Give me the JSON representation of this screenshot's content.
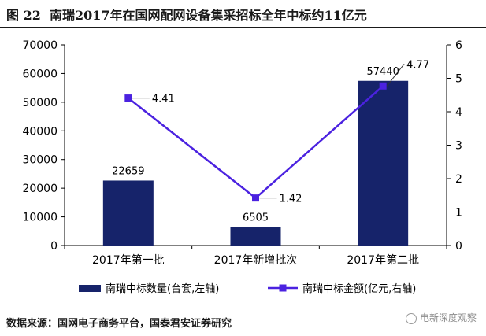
{
  "figure": {
    "label": "图 22",
    "title": "南瑞2017年在国网配网设备集采招标全年中标约11亿元",
    "source": "数据来源：国网电子商务平台，国泰君安证券研究",
    "watermark": "电新深度观察"
  },
  "chart_data": {
    "type": "bar",
    "categories": [
      "2017年第一批",
      "2017年新增批次",
      "2017年第二批"
    ],
    "series": [
      {
        "name": "南瑞中标数量(台套,左轴)",
        "type": "bar",
        "axis": "left",
        "color": "#16236a",
        "values": [
          22659,
          6505,
          57440
        ],
        "labels": [
          "22659",
          "6505",
          "57440"
        ]
      },
      {
        "name": "南瑞中标金额(亿元,右轴)",
        "type": "line",
        "axis": "right",
        "color": "#4b22e0",
        "values": [
          4.41,
          1.42,
          4.77
        ],
        "labels": [
          "4.41",
          "1.42",
          "4.77"
        ]
      }
    ],
    "y_left": {
      "min": 0,
      "max": 70000,
      "ticks": [
        "0",
        "10000",
        "20000",
        "30000",
        "40000",
        "50000",
        "60000",
        "70000"
      ]
    },
    "y_right": {
      "min": 0,
      "max": 6,
      "ticks": [
        "0",
        "1",
        "2",
        "3",
        "4",
        "5",
        "6"
      ]
    },
    "legend_position": "bottom",
    "grid": false
  }
}
